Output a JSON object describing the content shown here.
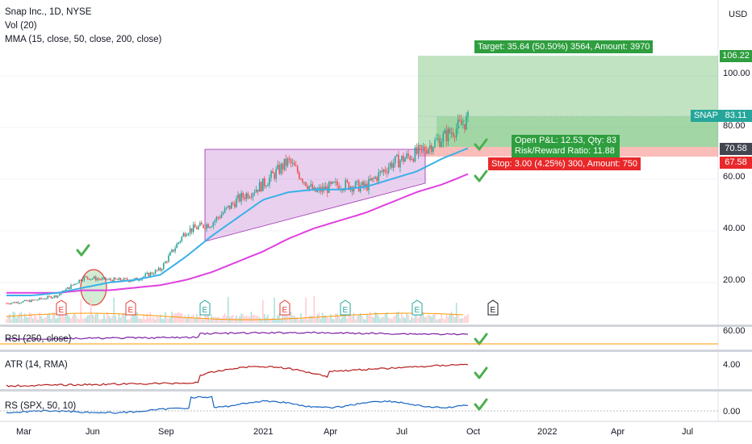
{
  "legend": {
    "symbol": "Snap Inc., 1D, NYSE",
    "volume": "Vol (20)",
    "mma": "MMA (15, close, 50, close, 200, close)"
  },
  "currency": "USD",
  "panes": {
    "rsi": "RSI (250, close)",
    "atr": "ATR (14, RMA)",
    "rs": "RS (SPX, 50, 10)"
  },
  "price_labels": [
    "100.00",
    "80.00",
    "60.00",
    "40.00",
    "20.00"
  ],
  "pane_axis_labels": {
    "rsi": "60.00",
    "atr": "4.00",
    "rs": "0.00"
  },
  "time_labels": [
    "Mar",
    "Jun",
    "Sep",
    "2021",
    "Apr",
    "Jul",
    "Oct",
    "2022",
    "Apr",
    "Jul"
  ],
  "price_boxes": {
    "target": "106.22",
    "snap_name": "SNAP",
    "snap_price": "83.11",
    "entry": "70.58",
    "stop": "67.58"
  },
  "position": {
    "target_text": "Target: 35.64 (50.50%) 3564, Amount: 3970",
    "open_pl_text": "Open P&L: 12.53, Qty: 83",
    "rr_text": "Risk/Reward Ratio: 11.88",
    "stop_text": "Stop: 3.00 (4.25%) 300, Amount: 750"
  },
  "earnings_marker": "E",
  "colors": {
    "candle_up": "#26a69a",
    "candle_down": "#ef5350",
    "ma_fast": "#3ab0e8",
    "ma_slow": "#e040e0",
    "profit_zone": "#4caf50",
    "loss_zone": "#f44336",
    "triangle": "#9c27b0",
    "rsi_line": "#7b1fa2",
    "atr_line": "#b71c1c",
    "rs_line": "#1565c0",
    "checkmark": "#4caf50"
  },
  "chart_data": {
    "type": "candlestick",
    "title": "Snap Inc., 1D, NYSE",
    "ylim": [
      0,
      125
    ],
    "price_path": [
      {
        "date": "2020-03",
        "value": 12
      },
      {
        "date": "2020-04",
        "value": 13
      },
      {
        "date": "2020-05",
        "value": 15
      },
      {
        "date": "2020-06",
        "value": 22
      },
      {
        "date": "2020-07",
        "value": 21
      },
      {
        "date": "2020-08",
        "value": 21
      },
      {
        "date": "2020-09",
        "value": 25
      },
      {
        "date": "2020-10",
        "value": 40
      },
      {
        "date": "2020-11",
        "value": 43
      },
      {
        "date": "2020-12",
        "value": 52
      },
      {
        "date": "2021-01",
        "value": 58
      },
      {
        "date": "2021-02",
        "value": 67
      },
      {
        "date": "2021-03",
        "value": 55
      },
      {
        "date": "2021-04",
        "value": 58
      },
      {
        "date": "2021-05",
        "value": 57
      },
      {
        "date": "2021-06",
        "value": 66
      },
      {
        "date": "2021-07",
        "value": 70
      },
      {
        "date": "2021-08",
        "value": 76
      },
      {
        "date": "2021-09",
        "value": 83
      }
    ],
    "series": [
      {
        "name": "MMA 50",
        "values": [
          15,
          15,
          16,
          18,
          20,
          21,
          23,
          30,
          38,
          45,
          52,
          55,
          56,
          56,
          57,
          60,
          63,
          68,
          72
        ]
      },
      {
        "name": "MMA 200",
        "values": [
          16,
          16,
          16,
          17,
          17,
          18,
          19,
          21,
          24,
          28,
          32,
          37,
          41,
          44,
          47,
          51,
          55,
          58,
          62
        ]
      }
    ],
    "trade": {
      "entry": 70.58,
      "target": 106.22,
      "stop": 67.58,
      "last": 83.11
    }
  }
}
